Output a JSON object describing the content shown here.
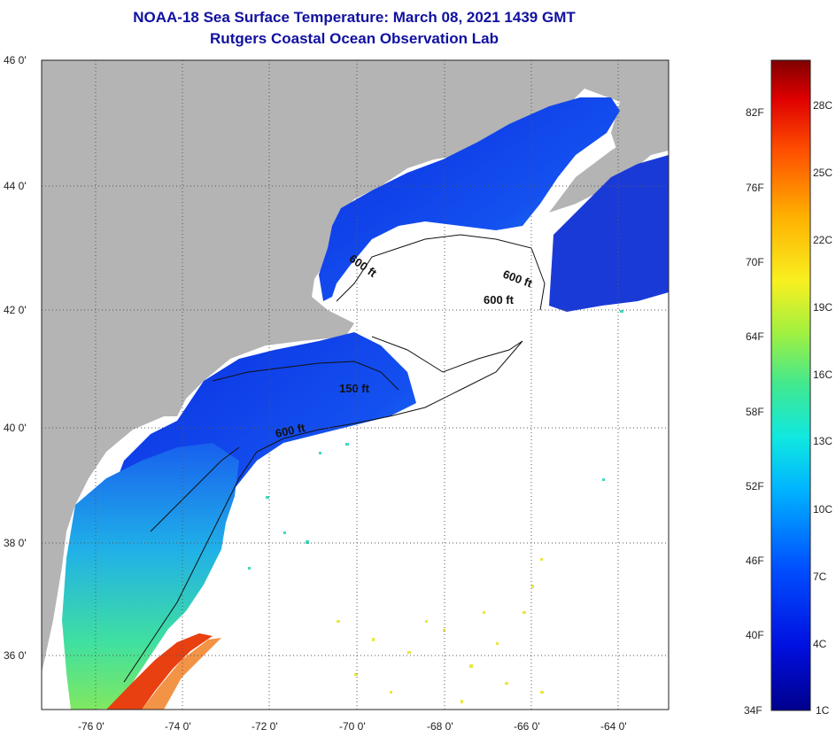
{
  "header": {
    "title": "NOAA-18 Sea Surface Temperature:  March 08, 2021 1439 GMT",
    "subtitle": "Rutgers Coastal Ocean Observation Lab"
  },
  "map": {
    "lat_labels": [
      "46 0'",
      "44 0'",
      "42 0'",
      "40 0'",
      "38 0'",
      "36 0'"
    ],
    "lon_labels": [
      "-76 0'",
      "-74 0'",
      "-72 0'",
      "-70 0'",
      "-68 0'",
      "-66 0'",
      "-64 0'"
    ],
    "contour_labels": [
      "600 ft",
      "600 ft",
      "600 ft",
      "150 ft",
      "600 ft"
    ],
    "colors": {
      "land": "#b4b4b4",
      "ocean_cold": "#1a3ad8",
      "ocean_mid": "#2aa8e0",
      "warm": "#e84010",
      "no_data": "#ffffff"
    }
  },
  "colorbar": {
    "fahrenheit": [
      "82F",
      "76F",
      "70F",
      "64F",
      "58F",
      "52F",
      "46F",
      "40F",
      "34F"
    ],
    "celsius": [
      "28C",
      "25C",
      "22C",
      "19C",
      "16C",
      "13C",
      "10C",
      "7C",
      "4C",
      "1C"
    ]
  }
}
